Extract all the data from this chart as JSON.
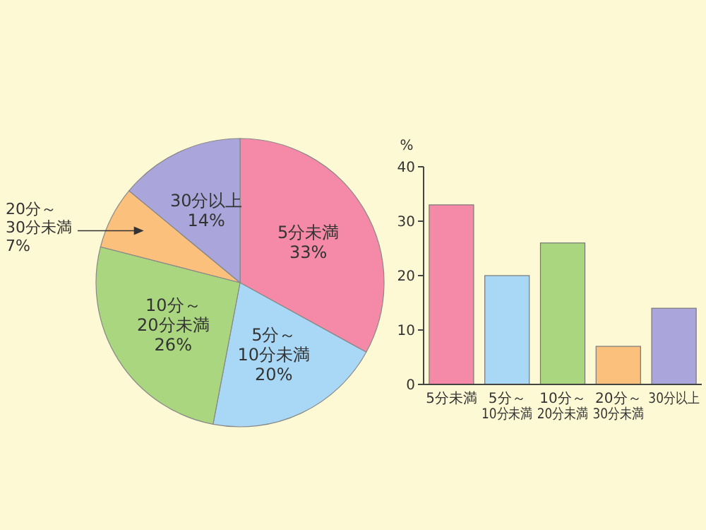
{
  "chart_data": [
    {
      "type": "pie",
      "categories": [
        "5分未満",
        "5分～10分未満",
        "10分～20分未満",
        "20分～30分未満",
        "30分以上"
      ],
      "values": [
        33,
        20,
        26,
        7,
        14
      ],
      "colors": [
        "#f58aa8",
        "#a9d8f6",
        "#a9d67e",
        "#fac07c",
        "#aaa6dc"
      ],
      "value_labels": [
        "33%",
        "20%",
        "26%",
        "7%",
        "14%"
      ]
    },
    {
      "type": "bar",
      "categories": [
        "5分未満",
        "5分～10分未満",
        "10分～20分未満",
        "20分～30分未満",
        "30分以上"
      ],
      "values": [
        33,
        20,
        26,
        7,
        14
      ],
      "colors": [
        "#f58aa8",
        "#a9d8f6",
        "#a9d67e",
        "#fac07c",
        "#aaa6dc"
      ],
      "ylabel": "%",
      "ylim": [
        0,
        40
      ],
      "yticks": [
        0,
        10,
        20,
        30,
        40
      ]
    }
  ]
}
